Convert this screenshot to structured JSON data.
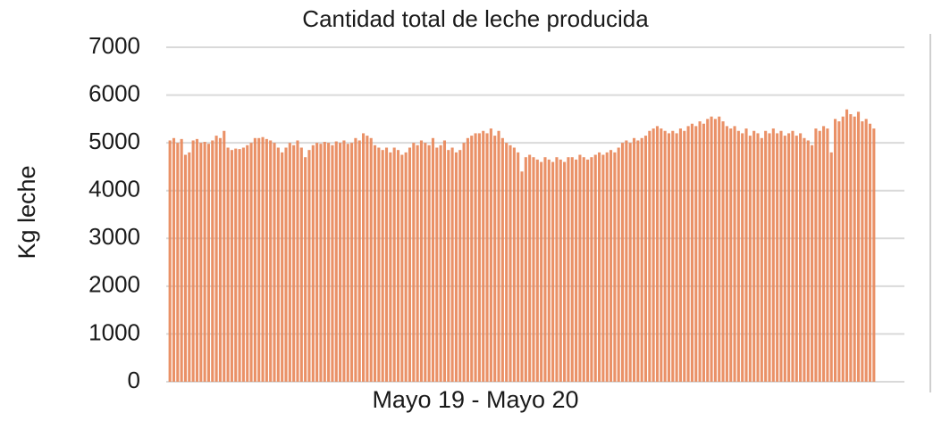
{
  "chart_data": {
    "type": "bar",
    "title": "Cantidad total de leche producida",
    "xlabel": "Mayo 19 - Mayo 20",
    "ylabel": "Kg leche",
    "color": "#e8885a",
    "grid": true,
    "ylim": [
      0,
      7000
    ],
    "yticks": [
      0,
      1000,
      2000,
      3000,
      4000,
      5000,
      6000,
      7000
    ],
    "categories": [
      null,
      null,
      null,
      null,
      null,
      null,
      null,
      null,
      null,
      null,
      null,
      null,
      null,
      null,
      null,
      null,
      null,
      null,
      null,
      null,
      null,
      null,
      null,
      null,
      null,
      null,
      null,
      null,
      null,
      null,
      null,
      null,
      null,
      null,
      null,
      null,
      null,
      null,
      null,
      null,
      null,
      null,
      null,
      null,
      null,
      null,
      null,
      null,
      null,
      null,
      null,
      null,
      null,
      null,
      null,
      null,
      null,
      null,
      null,
      null,
      null,
      null,
      null,
      null,
      null,
      null,
      null,
      null,
      null,
      null,
      null,
      null,
      null,
      null,
      null,
      null,
      null,
      null,
      null,
      null,
      null,
      null,
      null,
      null,
      null,
      null,
      null,
      null,
      null,
      null,
      null,
      null,
      null,
      null,
      null,
      null,
      null,
      null,
      null,
      null,
      null,
      null,
      null,
      null,
      null,
      null,
      null,
      null,
      null,
      null,
      null,
      null,
      null,
      null,
      null,
      null,
      null,
      null,
      null,
      null,
      null,
      null,
      null,
      null,
      null,
      null,
      null,
      null,
      null,
      null,
      null,
      null,
      null,
      null,
      null,
      null,
      null,
      null,
      null,
      null,
      null,
      null,
      null,
      null,
      null,
      null,
      null,
      null,
      null,
      null,
      null,
      null,
      null,
      null,
      null,
      null,
      null,
      null,
      null,
      null,
      null,
      null,
      null,
      null,
      null,
      null,
      null,
      null,
      null,
      null,
      null,
      null,
      null,
      null,
      null,
      null,
      null,
      null,
      null,
      null,
      null,
      null,
      null
    ],
    "values": [
      5050,
      5100,
      5000,
      5080,
      4750,
      4800,
      5050,
      5080,
      5000,
      5020,
      4980,
      5050,
      5150,
      5100,
      5250,
      4900,
      4850,
      4880,
      4870,
      4900,
      4950,
      5000,
      5100,
      5100,
      5120,
      5080,
      5050,
      5000,
      4900,
      4800,
      4900,
      5000,
      4950,
      5050,
      4900,
      4700,
      4850,
      4950,
      5000,
      4980,
      5020,
      5000,
      4950,
      5030,
      5000,
      5050,
      4980,
      5000,
      5100,
      5050,
      5200,
      5150,
      5100,
      4950,
      4900,
      4850,
      4900,
      4800,
      4900,
      4850,
      4750,
      4800,
      4900,
      5000,
      4950,
      5050,
      5000,
      4950,
      5100,
      4900,
      4950,
      5050,
      4850,
      4900,
      4800,
      4850,
      5000,
      5100,
      5150,
      5200,
      5200,
      5250,
      5200,
      5300,
      5150,
      5250,
      5100,
      5000,
      4950,
      4900,
      4800,
      4400,
      4700,
      4750,
      4700,
      4650,
      4600,
      4700,
      4650,
      4600,
      4700,
      4650,
      4600,
      4700,
      4700,
      4650,
      4750,
      4700,
      4650,
      4700,
      4750,
      4800,
      4750,
      4800,
      4850,
      4800,
      4900,
      5000,
      5050,
      5000,
      5100,
      5050,
      5100,
      5150,
      5250,
      5300,
      5350,
      5300,
      5250,
      5200,
      5250,
      5200,
      5300,
      5250,
      5350,
      5400,
      5350,
      5450,
      5400,
      5500,
      5550,
      5500,
      5550,
      5450,
      5350,
      5300,
      5350,
      5250,
      5200,
      5300,
      5150,
      5250,
      5200,
      5100,
      5250,
      5200,
      5300,
      5200,
      5250,
      5150,
      5200,
      5250,
      5150,
      5200,
      5100,
      5050,
      4950,
      5300,
      5250,
      5350,
      5300,
      4800,
      5500,
      5450,
      5550,
      5700,
      5600,
      5550,
      5650,
      5450,
      5500,
      5400,
      5300
    ]
  }
}
